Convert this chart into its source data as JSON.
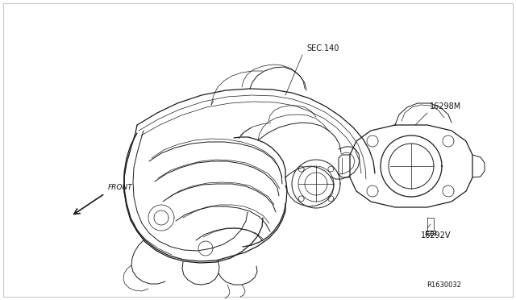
{
  "bg_color": "#ffffff",
  "border_color": "#c8c8c8",
  "line_color": "#1a1a1a",
  "text_color": "#111111",
  "labels": {
    "sec140": "SEC.140",
    "part1": "16298M",
    "part2": "16292V",
    "ref": "R1630032",
    "front": "FRONT"
  },
  "font_size": 7.0,
  "ref_font_size": 6.0,
  "figsize": [
    6.4,
    3.72
  ],
  "dpi": 100
}
